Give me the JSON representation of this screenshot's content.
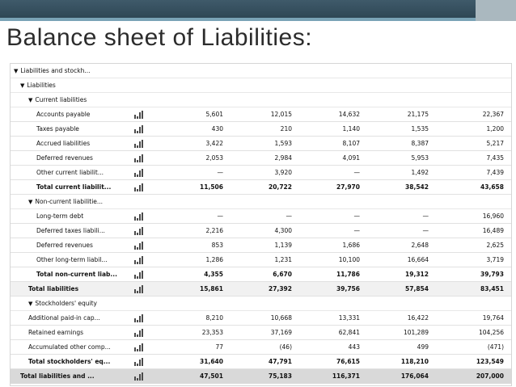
{
  "slide": {
    "title": "Balance sheet of Liabilities:"
  },
  "rows": [
    {
      "label": "Liabilities and stockh...",
      "indent": 0,
      "bold": false,
      "caret": true,
      "values": []
    },
    {
      "label": "Liabilities",
      "indent": 1,
      "bold": false,
      "caret": true,
      "values": []
    },
    {
      "label": "Current liabilities",
      "indent": 2,
      "bold": false,
      "caret": true,
      "values": []
    },
    {
      "label": "Accounts payable",
      "indent": 3,
      "bold": false,
      "caret": false,
      "values": [
        "5,601",
        "12,015",
        "14,632",
        "21,175",
        "22,367"
      ]
    },
    {
      "label": "Taxes payable",
      "indent": 3,
      "bold": false,
      "caret": false,
      "values": [
        "430",
        "210",
        "1,140",
        "1,535",
        "1,200"
      ]
    },
    {
      "label": "Accrued liabilities",
      "indent": 3,
      "bold": false,
      "caret": false,
      "values": [
        "3,422",
        "1,593",
        "8,107",
        "8,387",
        "5,217"
      ]
    },
    {
      "label": "Deferred revenues",
      "indent": 3,
      "bold": false,
      "caret": false,
      "values": [
        "2,053",
        "2,984",
        "4,091",
        "5,953",
        "7,435"
      ]
    },
    {
      "label": "Other current liabilit...",
      "indent": 3,
      "bold": false,
      "caret": false,
      "values": [
        "—",
        "3,920",
        "—",
        "1,492",
        "7,439"
      ]
    },
    {
      "label": "Total current liabilit...",
      "indent": 3,
      "bold": true,
      "caret": false,
      "values": [
        "11,506",
        "20,722",
        "27,970",
        "38,542",
        "43,658"
      ]
    },
    {
      "label": "Non-current liabilitie...",
      "indent": 2,
      "bold": false,
      "caret": true,
      "values": []
    },
    {
      "label": "Long-term debt",
      "indent": 3,
      "bold": false,
      "caret": false,
      "values": [
        "—",
        "—",
        "—",
        "—",
        "16,960"
      ]
    },
    {
      "label": "Deferred taxes liabili...",
      "indent": 3,
      "bold": false,
      "caret": false,
      "values": [
        "2,216",
        "4,300",
        "—",
        "—",
        "16,489"
      ]
    },
    {
      "label": "Deferred revenues",
      "indent": 3,
      "bold": false,
      "caret": false,
      "values": [
        "853",
        "1,139",
        "1,686",
        "2,648",
        "2,625"
      ]
    },
    {
      "label": "Other long-term liabil...",
      "indent": 3,
      "bold": false,
      "caret": false,
      "values": [
        "1,286",
        "1,231",
        "10,100",
        "16,664",
        "3,719"
      ]
    },
    {
      "label": "Total non-current liab...",
      "indent": 3,
      "bold": true,
      "caret": false,
      "values": [
        "4,355",
        "6,670",
        "11,786",
        "19,312",
        "39,793"
      ]
    },
    {
      "label": "Total liabilities",
      "indent": 2,
      "bold": true,
      "caret": false,
      "values": [
        "15,861",
        "27,392",
        "39,756",
        "57,854",
        "83,451"
      ]
    },
    {
      "label": "Stockholders' equity",
      "indent": 2,
      "bold": false,
      "caret": true,
      "values": []
    },
    {
      "label": "Additional paid-in cap...",
      "indent": 2,
      "bold": false,
      "caret": false,
      "values": [
        "8,210",
        "10,668",
        "13,331",
        "16,422",
        "19,764"
      ]
    },
    {
      "label": "Retained earnings",
      "indent": 2,
      "bold": false,
      "caret": false,
      "values": [
        "23,353",
        "37,169",
        "62,841",
        "101,289",
        "104,256"
      ]
    },
    {
      "label": "Accumulated other comp...",
      "indent": 2,
      "bold": false,
      "caret": false,
      "values": [
        "77",
        "(46)",
        "443",
        "499",
        "(471)"
      ]
    },
    {
      "label": "Total stockholders' eq...",
      "indent": 2,
      "bold": true,
      "caret": false,
      "values": [
        "31,640",
        "47,791",
        "76,615",
        "118,210",
        "123,549"
      ]
    },
    {
      "label": "Total liabilities and ...",
      "indent": 1,
      "bold": true,
      "caret": false,
      "values": [
        "47,501",
        "75,183",
        "116,371",
        "176,064",
        "207,000"
      ]
    }
  ],
  "chart_data": {
    "type": "table",
    "columns": [
      "",
      "",
      "",
      "",
      ""
    ],
    "rows": [
      {
        "label": "Accounts payable",
        "values": [
          "5,601",
          "12,015",
          "14,632",
          "21,175",
          "22,367"
        ]
      },
      {
        "label": "Taxes payable",
        "values": [
          "430",
          "210",
          "1,140",
          "1,535",
          "1,200"
        ]
      },
      {
        "label": "Accrued liabilities",
        "values": [
          "3,422",
          "1,593",
          "8,107",
          "8,387",
          "5,217"
        ]
      },
      {
        "label": "Deferred revenues",
        "values": [
          "2,053",
          "2,984",
          "4,091",
          "5,953",
          "7,435"
        ]
      },
      {
        "label": "Other current liabilit...",
        "values": [
          "—",
          "3,920",
          "—",
          "1,492",
          "7,439"
        ]
      },
      {
        "label": "Total current liabilit...",
        "values": [
          "11,506",
          "20,722",
          "27,970",
          "38,542",
          "43,658"
        ]
      },
      {
        "label": "Long-term debt",
        "values": [
          "—",
          "—",
          "—",
          "—",
          "16,960"
        ]
      },
      {
        "label": "Deferred taxes liabili...",
        "values": [
          "2,216",
          "4,300",
          "—",
          "—",
          "16,489"
        ]
      },
      {
        "label": "Deferred revenues",
        "values": [
          "853",
          "1,139",
          "1,686",
          "2,648",
          "2,625"
        ]
      },
      {
        "label": "Other long-term liabil...",
        "values": [
          "1,286",
          "1,231",
          "10,100",
          "16,664",
          "3,719"
        ]
      },
      {
        "label": "Total non-current liab...",
        "values": [
          "4,355",
          "6,670",
          "11,786",
          "19,312",
          "39,793"
        ]
      },
      {
        "label": "Total liabilities",
        "values": [
          "15,861",
          "27,392",
          "39,756",
          "57,854",
          "83,451"
        ]
      },
      {
        "label": "Additional paid-in cap...",
        "values": [
          "8,210",
          "10,668",
          "13,331",
          "16,422",
          "19,764"
        ]
      },
      {
        "label": "Retained earnings",
        "values": [
          "23,353",
          "37,169",
          "62,841",
          "101,289",
          "104,256"
        ]
      },
      {
        "label": "Accumulated other comp...",
        "values": [
          "77",
          "(46)",
          "443",
          "499",
          "(471)"
        ]
      },
      {
        "label": "Total stockholders' eq...",
        "values": [
          "31,640",
          "47,791",
          "76,615",
          "118,210",
          "123,549"
        ]
      },
      {
        "label": "Total liabilities and ...",
        "values": [
          "47,501",
          "75,183",
          "116,371",
          "176,064",
          "207,000"
        ]
      }
    ]
  },
  "icons": {
    "caret": "caret-down-icon",
    "chart": "mini-bar-chart-icon"
  },
  "colors": {
    "header_band": "#3f5a6a",
    "header_stripe": "#7aa3b6",
    "grand_total_row": "#d9d9d9"
  }
}
